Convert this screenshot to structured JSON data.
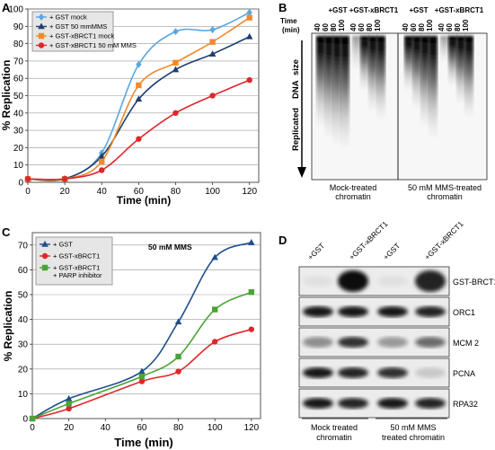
{
  "panels": {
    "A": {
      "letter": "A"
    },
    "B": {
      "letter": "B"
    },
    "C": {
      "letter": "C"
    },
    "D": {
      "letter": "D"
    }
  },
  "chart_data": [
    {
      "panel": "A",
      "type": "line",
      "xlabel": "Time (min)",
      "ylabel": "% Replication",
      "xlim": [
        0,
        125
      ],
      "ylim": [
        0,
        100
      ],
      "xticks": [
        0,
        20,
        40,
        60,
        80,
        100,
        120
      ],
      "yticks": [
        0,
        10,
        20,
        30,
        40,
        50,
        60,
        70,
        80,
        90,
        100
      ],
      "grid": true,
      "legend": "top-left",
      "series": [
        {
          "name": "+ GST mock",
          "color": "#5aa7e0",
          "marker": "diamond",
          "x": [
            0,
            20,
            40,
            60,
            80,
            100,
            120
          ],
          "y": [
            2,
            2,
            17,
            68,
            87,
            88,
            98
          ]
        },
        {
          "name": "+ GST 50 mmMMS",
          "color": "#1f3f6e",
          "marker": "triangle",
          "x": [
            0,
            20,
            40,
            60,
            80,
            100,
            120
          ],
          "y": [
            2,
            2,
            15,
            48,
            65,
            74,
            84
          ]
        },
        {
          "name": "+ GST-xBRCT1 mock",
          "color": "#f08a2c",
          "marker": "square",
          "x": [
            0,
            20,
            40,
            60,
            80,
            100,
            120
          ],
          "y": [
            2,
            2,
            12,
            56,
            69,
            81,
            95
          ]
        },
        {
          "name": "+ GST-xBRCT1 50 mM MMS",
          "color": "#e0262c",
          "marker": "circle",
          "x": [
            0,
            20,
            40,
            60,
            80,
            100,
            120
          ],
          "y": [
            2,
            2,
            7,
            25,
            40,
            50,
            59
          ]
        }
      ]
    },
    {
      "panel": "C",
      "type": "line",
      "xlabel": "Time (min)",
      "ylabel": "% Replication",
      "annotation": "50 mM MMS",
      "xlim": [
        0,
        125
      ],
      "ylim": [
        0,
        75
      ],
      "xticks": [
        0,
        20,
        40,
        60,
        80,
        100,
        120
      ],
      "yticks": [
        0,
        10,
        20,
        30,
        40,
        50,
        60,
        70
      ],
      "grid": true,
      "legend": "top-left",
      "series": [
        {
          "name": "+ GST",
          "color": "#1f4e8c",
          "marker": "triangle",
          "x": [
            0,
            20,
            60,
            80,
            100,
            120
          ],
          "y": [
            0,
            8,
            19,
            39,
            65,
            71
          ]
        },
        {
          "name": "+ GST-xBRCT1",
          "color": "#e0262c",
          "marker": "circle",
          "x": [
            0,
            20,
            60,
            80,
            100,
            120
          ],
          "y": [
            0,
            4,
            15,
            19,
            31,
            36
          ]
        },
        {
          "name": "+ GST-xBRCT1",
          "name2": "+ PARP inhibitor",
          "color": "#4aa336",
          "marker": "square",
          "x": [
            0,
            20,
            60,
            80,
            100,
            120
          ],
          "y": [
            0,
            6,
            17,
            25,
            44,
            51
          ]
        }
      ]
    }
  ],
  "panelB": {
    "time_label_1": "Time",
    "time_label_2": "(min)",
    "groups": [
      "+GST",
      "+GST-xBRCT1",
      "+GST",
      "+GST-xBRCT1"
    ],
    "lanes": [
      "40",
      "60",
      "80",
      "100",
      "40",
      "60",
      "80",
      "100",
      "40",
      "60",
      "80",
      "100",
      "40",
      "60",
      "80",
      "100"
    ],
    "side_label_1": "Replicated",
    "side_label_2": "DNA",
    "side_label_3": "size",
    "bottom_left_1": "Mock-treated",
    "bottom_left_2": "chromatin",
    "bottom_right_1": "50   mM  MMS-treated",
    "bottom_right_2": "chromatin"
  },
  "panelD": {
    "columns": [
      "+GST",
      "+GST-xBRCT1",
      "+GST",
      "+GST-xBRCT1"
    ],
    "rows": [
      "GST-BRCT1",
      "ORC1",
      "MCM 2",
      "PCNA",
      "RPA32"
    ],
    "bottom_left_1": "Mock   treated",
    "bottom_left_2": "chromatin",
    "bottom_right_1": "50    mM  MMS",
    "bottom_right_2": "treated   chromatin"
  }
}
